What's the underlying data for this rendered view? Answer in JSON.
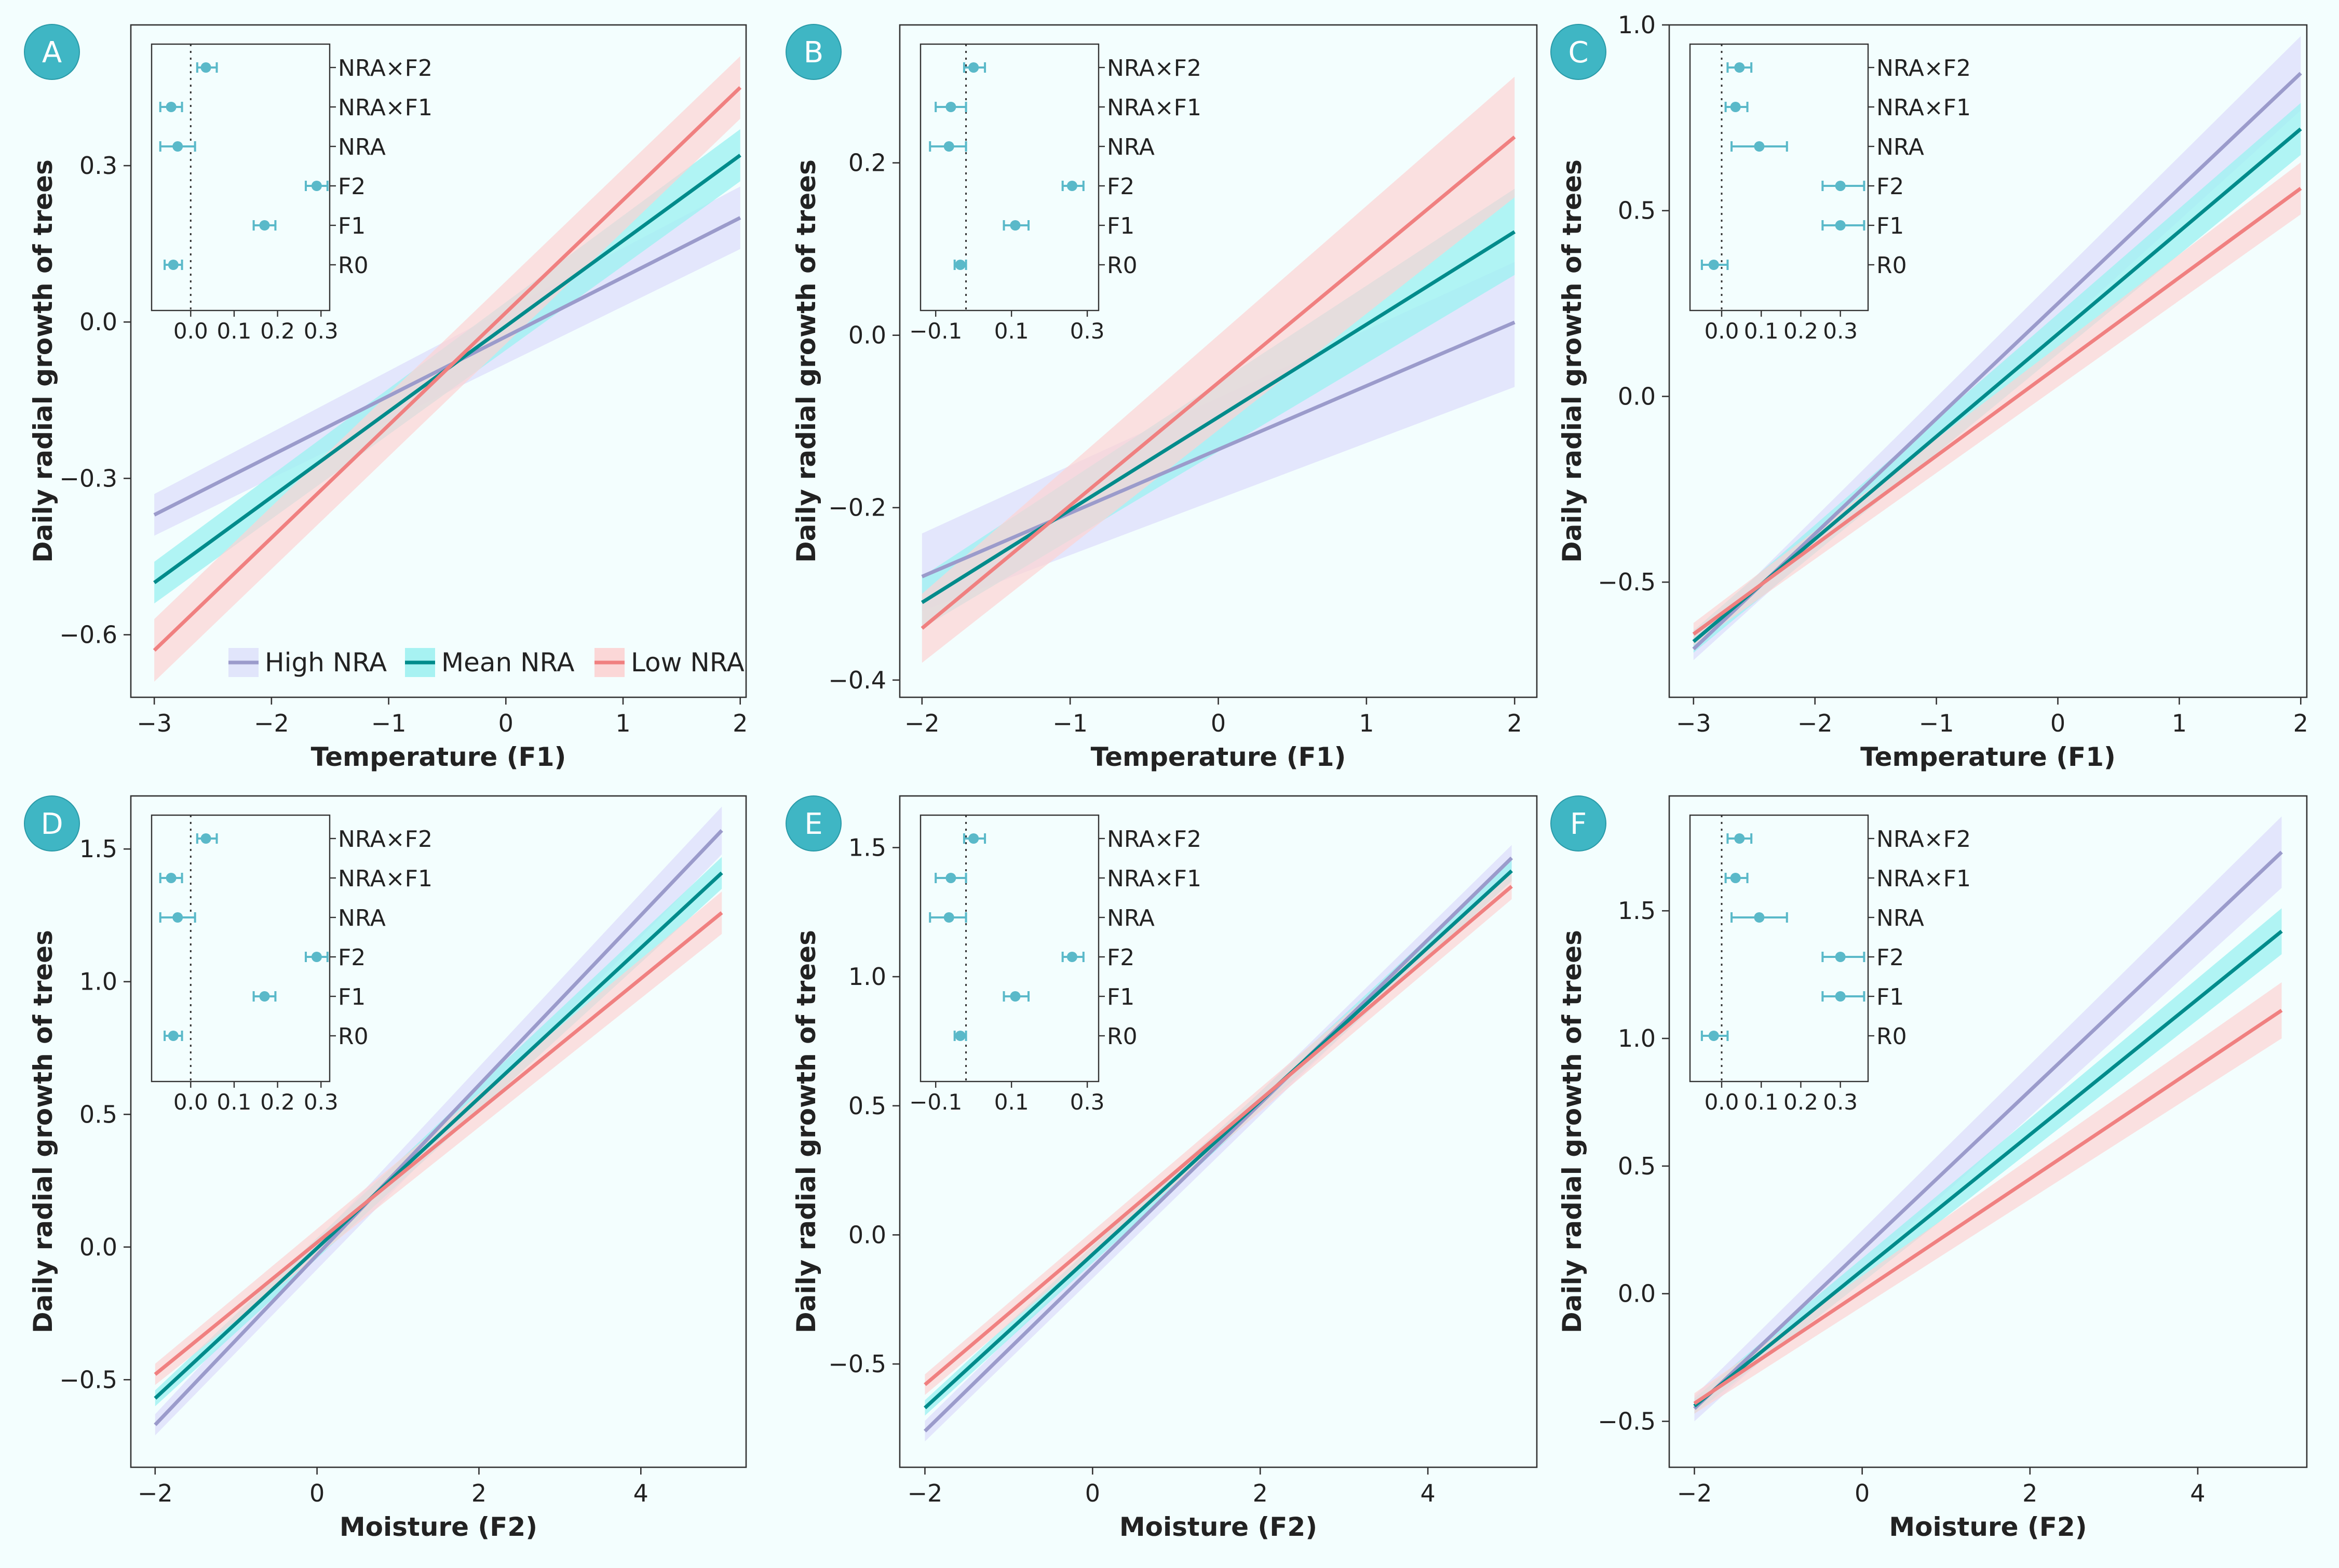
{
  "colors": {
    "background": "#f3fefe",
    "high": "#9b9bcb",
    "mean": "#008b8b",
    "low": "#f08080",
    "high_band": "#dfe2fb",
    "mean_band": "#9ff1f1",
    "low_band": "#fcd3d3",
    "badge": "#3fb6c4",
    "inset_marker": "#5ab9c9"
  },
  "legend": {
    "placement": "bottom-right of panel A",
    "high_label": "High NRA",
    "mean_label": "Mean NRA",
    "low_label": "Low NRA"
  },
  "chart_data": [
    {
      "panel": "A",
      "type": "line",
      "xlabel": "Temperature (F1)",
      "ylabel": "Daily radial growth of trees",
      "xlim": [
        -3.2,
        2.05
      ],
      "ylim": [
        -0.72,
        0.57
      ],
      "xticks": [
        -3,
        -2,
        -1,
        0,
        1,
        2
      ],
      "xtick_labels": [
        "−3",
        "−2",
        "−1",
        "0",
        "1",
        "2"
      ],
      "yticks": [
        -0.6,
        -0.3,
        0.0,
        0.3
      ],
      "ytick_labels": [
        "−0.6",
        "−0.3",
        "0.0",
        "0.3"
      ],
      "series": [
        {
          "name": "High NRA",
          "x": [
            -3,
            2
          ],
          "y": [
            -0.37,
            0.2
          ],
          "lower": [
            -0.41,
            0.14
          ],
          "upper": [
            -0.33,
            0.26
          ]
        },
        {
          "name": "Mean NRA",
          "x": [
            -3,
            2
          ],
          "y": [
            -0.5,
            0.32
          ],
          "lower": [
            -0.54,
            0.27
          ],
          "upper": [
            -0.46,
            0.37
          ]
        },
        {
          "name": "Low NRA",
          "x": [
            -3,
            2
          ],
          "y": [
            -0.63,
            0.45
          ],
          "lower": [
            -0.69,
            0.39
          ],
          "upper": [
            -0.57,
            0.51
          ]
        }
      ],
      "inset": {
        "type": "forest",
        "labels": [
          "NRA×F2",
          "NRA×F1",
          "NRA",
          "F2",
          "F1",
          "R0"
        ],
        "estimates": [
          0.035,
          -0.045,
          -0.03,
          0.29,
          0.17,
          -0.04
        ],
        "ci_low": [
          0.015,
          -0.07,
          -0.07,
          0.265,
          0.145,
          -0.06
        ],
        "ci_high": [
          0.06,
          -0.02,
          0.01,
          0.315,
          0.195,
          -0.02
        ],
        "xlim": [
          -0.09,
          0.32
        ],
        "ref_line": 0,
        "xticks": [
          0,
          0.1,
          0.2,
          0.3
        ],
        "xtick_labels": [
          "0.0",
          "0.1",
          "0.2",
          "0.3"
        ]
      }
    },
    {
      "panel": "B",
      "type": "line",
      "xlabel": "Temperature (F1)",
      "ylabel": "Daily radial growth of trees",
      "xlim": [
        -2.15,
        2.15
      ],
      "ylim": [
        -0.42,
        0.36
      ],
      "xticks": [
        -2,
        -1,
        0,
        1,
        2
      ],
      "xtick_labels": [
        "−2",
        "−1",
        "0",
        "1",
        "2"
      ],
      "yticks": [
        -0.4,
        -0.2,
        0.0,
        0.2
      ],
      "ytick_labels": [
        "−0.4",
        "−0.2",
        "0.0",
        "0.2"
      ],
      "series": [
        {
          "name": "High NRA",
          "x": [
            -2,
            2
          ],
          "y": [
            -0.28,
            0.015
          ],
          "lower": [
            -0.32,
            -0.06
          ],
          "upper": [
            -0.23,
            0.085
          ]
        },
        {
          "name": "Mean NRA",
          "x": [
            -2,
            2
          ],
          "y": [
            -0.31,
            0.12
          ],
          "lower": [
            -0.34,
            0.07
          ],
          "upper": [
            -0.28,
            0.17
          ]
        },
        {
          "name": "Low NRA",
          "x": [
            -2,
            2
          ],
          "y": [
            -0.34,
            0.23
          ],
          "lower": [
            -0.38,
            0.16
          ],
          "upper": [
            -0.3,
            0.3
          ]
        }
      ],
      "inset": {
        "type": "forest",
        "labels": [
          "NRA×F2",
          "NRA×F1",
          "NRA",
          "F2",
          "F1",
          "R0"
        ],
        "estimates": [
          0.0,
          -0.06,
          -0.065,
          0.26,
          0.11,
          -0.035
        ],
        "ci_low": [
          -0.025,
          -0.1,
          -0.115,
          0.235,
          0.08,
          -0.05
        ],
        "ci_high": [
          0.03,
          -0.02,
          -0.02,
          0.29,
          0.145,
          -0.02
        ],
        "xlim": [
          -0.14,
          0.33
        ],
        "ref_line": -0.02,
        "xticks": [
          -0.1,
          0.1,
          0.3
        ],
        "xtick_labels": [
          "−0.1",
          "0.1",
          "0.3"
        ]
      }
    },
    {
      "panel": "C",
      "type": "line",
      "xlabel": "Temperature (F1)",
      "ylabel": "Daily radial growth of trees",
      "xlim": [
        -3.2,
        2.05
      ],
      "ylim": [
        -0.81,
        1.0
      ],
      "xticks": [
        -3,
        -2,
        -1,
        0,
        1,
        2
      ],
      "xtick_labels": [
        "−3",
        "−2",
        "−1",
        "0",
        "1",
        "2"
      ],
      "yticks": [
        -0.5,
        0.0,
        0.5,
        1.0
      ],
      "ytick_labels": [
        "−0.5",
        "0.0",
        "0.5",
        "1.0"
      ],
      "series": [
        {
          "name": "High NRA",
          "x": [
            -3,
            2
          ],
          "y": [
            -0.68,
            0.87
          ],
          "lower": [
            -0.71,
            0.77
          ],
          "upper": [
            -0.65,
            0.97
          ]
        },
        {
          "name": "Mean NRA",
          "x": [
            -3,
            2
          ],
          "y": [
            -0.66,
            0.72
          ],
          "lower": [
            -0.69,
            0.65
          ],
          "upper": [
            -0.63,
            0.79
          ]
        },
        {
          "name": "Low NRA",
          "x": [
            -3,
            2
          ],
          "y": [
            -0.64,
            0.56
          ],
          "lower": [
            -0.67,
            0.49
          ],
          "upper": [
            -0.61,
            0.63
          ]
        }
      ],
      "inset": {
        "type": "forest",
        "labels": [
          "NRA×F2",
          "NRA×F1",
          "NRA",
          "F2",
          "F1",
          "R0"
        ],
        "estimates": [
          0.045,
          0.035,
          0.095,
          0.3,
          0.3,
          -0.02
        ],
        "ci_low": [
          0.015,
          0.01,
          0.025,
          0.255,
          0.255,
          -0.05
        ],
        "ci_high": [
          0.075,
          0.065,
          0.165,
          0.36,
          0.36,
          0.015
        ],
        "xlim": [
          -0.08,
          0.37
        ],
        "ref_line": 0,
        "xticks": [
          0,
          0.1,
          0.2,
          0.3
        ],
        "xtick_labels": [
          "0.0",
          "0.1",
          "0.2",
          "0.3"
        ]
      }
    },
    {
      "panel": "D",
      "type": "line",
      "xlabel": "Moisture (F2)",
      "ylabel": "Daily radial growth of trees",
      "xlim": [
        -2.3,
        5.3
      ],
      "ylim": [
        -0.83,
        1.7
      ],
      "xticks": [
        -2,
        0,
        2,
        4
      ],
      "xtick_labels": [
        "−2",
        "0",
        "2",
        "4"
      ],
      "yticks": [
        -0.5,
        0.0,
        0.5,
        1.0,
        1.5
      ],
      "ytick_labels": [
        "−0.5",
        "0.0",
        "0.5",
        "1.0",
        "1.5"
      ],
      "series": [
        {
          "name": "High NRA",
          "x": [
            -2,
            5
          ],
          "y": [
            -0.67,
            1.57
          ],
          "lower": [
            -0.71,
            1.48
          ],
          "upper": [
            -0.63,
            1.66
          ]
        },
        {
          "name": "Mean NRA",
          "x": [
            -2,
            5
          ],
          "y": [
            -0.57,
            1.41
          ],
          "lower": [
            -0.6,
            1.35
          ],
          "upper": [
            -0.54,
            1.47
          ]
        },
        {
          "name": "Low NRA",
          "x": [
            -2,
            5
          ],
          "y": [
            -0.48,
            1.26
          ],
          "lower": [
            -0.52,
            1.18
          ],
          "upper": [
            -0.44,
            1.34
          ]
        }
      ],
      "inset": {
        "type": "forest",
        "labels": [
          "NRA×F2",
          "NRA×F1",
          "NRA",
          "F2",
          "F1",
          "R0"
        ],
        "estimates": [
          0.035,
          -0.045,
          -0.03,
          0.29,
          0.17,
          -0.04
        ],
        "ci_low": [
          0.015,
          -0.07,
          -0.07,
          0.265,
          0.145,
          -0.06
        ],
        "ci_high": [
          0.06,
          -0.02,
          0.01,
          0.315,
          0.195,
          -0.02
        ],
        "xlim": [
          -0.09,
          0.32
        ],
        "ref_line": 0,
        "xticks": [
          0,
          0.1,
          0.2,
          0.3
        ],
        "xtick_labels": [
          "0.0",
          "0.1",
          "0.2",
          "0.3"
        ]
      }
    },
    {
      "panel": "E",
      "type": "line",
      "xlabel": "Moisture (F2)",
      "ylabel": "Daily radial growth of trees",
      "xlim": [
        -2.3,
        5.3
      ],
      "ylim": [
        -0.9,
        1.7
      ],
      "xticks": [
        -2,
        0,
        2,
        4
      ],
      "xtick_labels": [
        "−2",
        "0",
        "2",
        "4"
      ],
      "yticks": [
        -0.5,
        0.0,
        0.5,
        1.0,
        1.5
      ],
      "ytick_labels": [
        "−0.5",
        "0.0",
        "0.5",
        "1.0",
        "1.5"
      ],
      "series": [
        {
          "name": "High NRA",
          "x": [
            -2,
            5
          ],
          "y": [
            -0.76,
            1.46
          ],
          "lower": [
            -0.8,
            1.41
          ],
          "upper": [
            -0.72,
            1.51
          ]
        },
        {
          "name": "Mean NRA",
          "x": [
            -2,
            5
          ],
          "y": [
            -0.67,
            1.41
          ],
          "lower": [
            -0.7,
            1.37
          ],
          "upper": [
            -0.64,
            1.45
          ]
        },
        {
          "name": "Low NRA",
          "x": [
            -2,
            5
          ],
          "y": [
            -0.58,
            1.35
          ],
          "lower": [
            -0.62,
            1.3
          ],
          "upper": [
            -0.54,
            1.4
          ]
        }
      ],
      "inset": {
        "type": "forest",
        "labels": [
          "NRA×F2",
          "NRA×F1",
          "NRA",
          "F2",
          "F1",
          "R0"
        ],
        "estimates": [
          0.0,
          -0.06,
          -0.065,
          0.26,
          0.11,
          -0.035
        ],
        "ci_low": [
          -0.025,
          -0.1,
          -0.115,
          0.235,
          0.08,
          -0.05
        ],
        "ci_high": [
          0.03,
          -0.02,
          -0.02,
          0.29,
          0.145,
          -0.02
        ],
        "xlim": [
          -0.14,
          0.33
        ],
        "ref_line": -0.02,
        "xticks": [
          -0.1,
          0.1,
          0.3
        ],
        "xtick_labels": [
          "−0.1",
          "0.1",
          "0.3"
        ]
      }
    },
    {
      "panel": "F",
      "type": "line",
      "xlabel": "Moisture (F2)",
      "ylabel": "Daily radial growth of trees",
      "xlim": [
        -2.3,
        5.3
      ],
      "ylim": [
        -0.68,
        1.95
      ],
      "xticks": [
        -2,
        0,
        2,
        4
      ],
      "xtick_labels": [
        "−2",
        "0",
        "2",
        "4"
      ],
      "yticks": [
        -0.5,
        0.0,
        0.5,
        1.0,
        1.5
      ],
      "ytick_labels": [
        "−0.5",
        "0.0",
        "0.5",
        "1.0",
        "1.5"
      ],
      "series": [
        {
          "name": "High NRA",
          "x": [
            -2,
            5
          ],
          "y": [
            -0.45,
            1.73
          ],
          "lower": [
            -0.5,
            1.59
          ],
          "upper": [
            -0.4,
            1.87
          ]
        },
        {
          "name": "Mean NRA",
          "x": [
            -2,
            5
          ],
          "y": [
            -0.44,
            1.42
          ],
          "lower": [
            -0.47,
            1.33
          ],
          "upper": [
            -0.41,
            1.51
          ]
        },
        {
          "name": "Low NRA",
          "x": [
            -2,
            5
          ],
          "y": [
            -0.43,
            1.11
          ],
          "lower": [
            -0.47,
            1.0
          ],
          "upper": [
            -0.39,
            1.22
          ]
        }
      ],
      "inset": {
        "type": "forest",
        "labels": [
          "NRA×F2",
          "NRA×F1",
          "NRA",
          "F2",
          "F1",
          "R0"
        ],
        "estimates": [
          0.045,
          0.035,
          0.095,
          0.3,
          0.3,
          -0.02
        ],
        "ci_low": [
          0.015,
          0.01,
          0.025,
          0.255,
          0.255,
          -0.05
        ],
        "ci_high": [
          0.075,
          0.065,
          0.165,
          0.36,
          0.36,
          0.015
        ],
        "xlim": [
          -0.08,
          0.37
        ],
        "ref_line": 0,
        "xticks": [
          0,
          0.1,
          0.2,
          0.3
        ],
        "xtick_labels": [
          "0.0",
          "0.1",
          "0.2",
          "0.3"
        ]
      }
    }
  ]
}
